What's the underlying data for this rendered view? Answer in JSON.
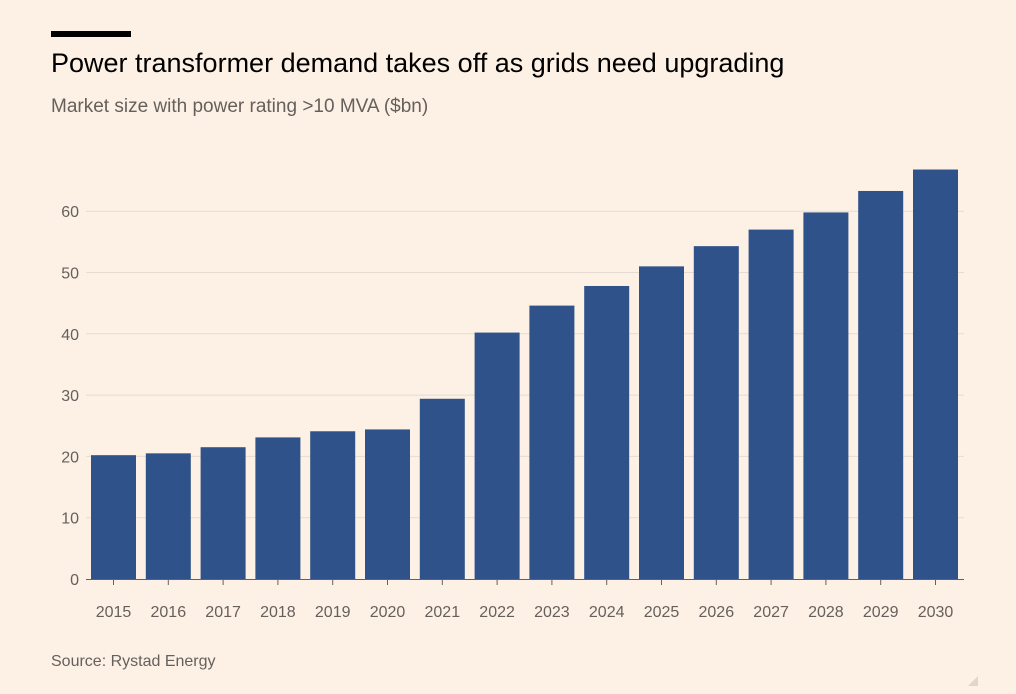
{
  "header": {
    "title": "Power transformer demand takes off as grids need upgrading",
    "subtitle": "Market size with power rating >10 MVA ($bn)"
  },
  "footer": {
    "source": "Source: Rystad Energy"
  },
  "colors": {
    "background": "#fdf1e5",
    "bar": "#2e5289",
    "grid": "#e6dbd0",
    "axis": "#66605c"
  },
  "chart_data": {
    "type": "bar",
    "title": "Power transformer demand takes off as grids need upgrading",
    "subtitle": "Market size with power rating >10 MVA ($bn)",
    "xlabel": "",
    "ylabel": "",
    "categories": [
      "2015",
      "2016",
      "2017",
      "2018",
      "2019",
      "2020",
      "2021",
      "2022",
      "2023",
      "2024",
      "2025",
      "2026",
      "2027",
      "2028",
      "2029",
      "2030"
    ],
    "values": [
      20.2,
      20.5,
      21.5,
      23.1,
      24.1,
      24.4,
      29.4,
      40.2,
      44.6,
      47.8,
      51.0,
      54.3,
      57.0,
      59.8,
      63.3,
      66.8
    ],
    "ylim": [
      0,
      70
    ],
    "yticks": [
      0,
      10,
      20,
      30,
      40,
      50,
      60
    ],
    "grid": "horizontal",
    "legend": "none"
  }
}
